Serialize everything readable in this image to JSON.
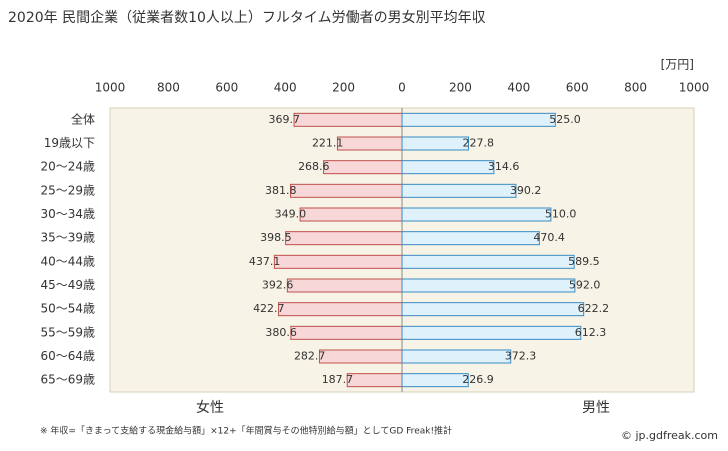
{
  "chart_data": {
    "type": "butterfly",
    "title": "2020年 民間企業（従業者数10人以上）フルタイム労働者の男女別平均年収",
    "unit": "[万円]",
    "categories": [
      "全体",
      "19歳以下",
      "20～24歳",
      "25～29歳",
      "30～34歳",
      "35～39歳",
      "40～44歳",
      "45～49歳",
      "50～54歳",
      "55～59歳",
      "60～64歳",
      "65～69歳"
    ],
    "series": [
      {
        "name": "女性",
        "side": "left",
        "color": "#f7d7d7",
        "edge": "#c0504d",
        "text_color": "#a0403d",
        "values": [
          369.7,
          221.1,
          268.6,
          381.8,
          349.0,
          398.5,
          437.1,
          392.6,
          422.7,
          380.6,
          282.7,
          187.7
        ],
        "value_labels": [
          "369.7",
          "221.1",
          "268.6",
          "381.8",
          "349.0",
          "398.5",
          "437.1",
          "392.6",
          "422.7",
          "380.6",
          "282.7",
          "187.7"
        ]
      },
      {
        "name": "男性",
        "side": "right",
        "color": "#dff1fb",
        "edge": "#3a8cc4",
        "text_color": "#3a8cc4",
        "values": [
          525.0,
          227.8,
          314.6,
          390.2,
          510.0,
          470.4,
          589.5,
          592.0,
          622.2,
          612.3,
          372.3,
          226.9
        ],
        "value_labels": [
          "525.0",
          "227.8",
          "314.6",
          "390.2",
          "510.0",
          "470.4",
          "589.5",
          "592.0",
          "622.2",
          "612.3",
          "372.3",
          "226.9"
        ]
      }
    ],
    "xlim": [
      -1000,
      1000
    ],
    "xticks": [
      {
        "value": -1000,
        "label": "1000"
      },
      {
        "value": -800,
        "label": "800"
      },
      {
        "value": -600,
        "label": "600"
      },
      {
        "value": -400,
        "label": "400"
      },
      {
        "value": -200,
        "label": "200"
      },
      0,
      200,
      400,
      600,
      800,
      1000
    ],
    "footnote": "※ 年収=「きまって支給する現金給与額」×12+「年間賞与その他特別給与額」としてGD Freak!推計",
    "credit": "© jp.gdfreak.com"
  }
}
